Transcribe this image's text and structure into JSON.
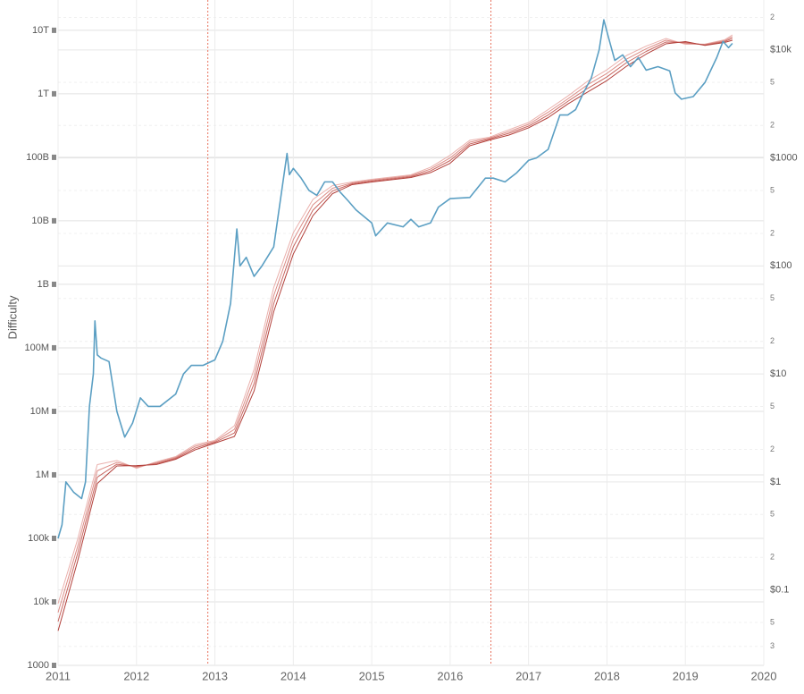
{
  "chart_data": {
    "type": "line",
    "ylabel": "Difficulty",
    "xlim": [
      2011,
      2020
    ],
    "xticks": [
      2011,
      2012,
      2013,
      2014,
      2015,
      2016,
      2017,
      2018,
      2019,
      2020
    ],
    "ylim": [
      1000,
      30000000000000
    ],
    "ylog": true,
    "yticks": [
      1000,
      {
        "value": 10000,
        "label": "10k"
      },
      {
        "value": 100000,
        "label": "100k"
      },
      {
        "value": 1000000,
        "label": "1M"
      },
      {
        "value": 10000000,
        "label": "10M"
      },
      {
        "value": 100000000,
        "label": "100M"
      },
      {
        "value": 1000000000,
        "label": "1B"
      },
      {
        "value": 10000000000,
        "label": "10B"
      },
      {
        "value": 100000000000,
        "label": "100B"
      },
      {
        "value": 1000000000000,
        "label": "1T"
      },
      {
        "value": 10000000000000,
        "label": "10T"
      }
    ],
    "y2lim": [
      0.02,
      29000
    ],
    "y2log": true,
    "y2ticks": [
      {
        "value": 0.03,
        "label": "3"
      },
      {
        "value": 0.05,
        "label": "5"
      },
      {
        "value": 0.1,
        "label": "$0.1"
      },
      {
        "value": 0.2,
        "label": "2"
      },
      {
        "value": 0.5,
        "label": "5"
      },
      {
        "value": 1,
        "label": "$1"
      },
      2,
      5,
      {
        "value": 10,
        "label": "$10"
      },
      {
        "value": 20,
        "label": "2"
      },
      {
        "value": 50,
        "label": "5"
      },
      {
        "value": 100,
        "label": "$100"
      },
      {
        "value": 200,
        "label": "2"
      },
      {
        "value": 500,
        "label": "5"
      },
      {
        "value": 1000,
        "label": "$1000"
      },
      {
        "value": 2000,
        "label": "2"
      },
      {
        "value": 5000,
        "label": "5"
      },
      {
        "value": 10000,
        "label": "$10k"
      },
      {
        "value": 20000,
        "label": "2"
      }
    ],
    "grid": true,
    "vlines": [
      2012.91,
      2016.52
    ],
    "vline_color": "#e8735e",
    "x": [
      2011.0,
      2011.25,
      2011.5,
      2011.75,
      2012.0,
      2012.25,
      2012.5,
      2012.75,
      2013.0,
      2013.25,
      2013.5,
      2013.75,
      2014.0,
      2014.25,
      2014.5,
      2014.75,
      2015.0,
      2015.5,
      2015.75,
      2016.0,
      2016.25,
      2016.5,
      2016.75,
      2017.0,
      2017.25,
      2017.5,
      2017.75,
      2018.0,
      2018.25,
      2018.5,
      2018.75,
      2019.0,
      2019.25,
      2019.5,
      2019.6
    ],
    "series": [
      {
        "color": "#eab0ac",
        "values": [
          9400,
          97000,
          1450000,
          1680000,
          1270000,
          1600000,
          1940000,
          3000000,
          3480000,
          5940000,
          45800000,
          890000000,
          6500000000,
          21700000000,
          35900000000,
          40800000000,
          45000000000,
          53000000000,
          69700000000,
          108000000000,
          185000000000,
          207000000000,
          272000000000,
          353000000000,
          565000000000,
          920000000000,
          1570000000000,
          2390000000000,
          4020000000000,
          5640000000000,
          7430000000000,
          6030000000000,
          6080000000000,
          7080000000000,
          8470000000000
        ]
      },
      {
        "color": "#dc8c86",
        "values": [
          6800,
          75000,
          1160000,
          1570000,
          1320000,
          1550000,
          1880000,
          2820000,
          3370000,
          5220000,
          35300000,
          665000000,
          5050000000,
          17900000000,
          32600000000,
          39500000000,
          43600000000,
          51300000000,
          65300000000,
          98000000000,
          173000000000,
          200000000000,
          255000000000,
          331000000000,
          513000000000,
          830000000000,
          1380000000000,
          2100000000000,
          3520000000000,
          5120000000000,
          6970000000000,
          6220000000000,
          5980000000000,
          6850000000000,
          7940000000000
        ]
      },
      {
        "color": "#c86660",
        "values": [
          4900,
          58000,
          920000,
          1470000,
          1360000,
          1500000,
          1820000,
          2640000,
          3260000,
          4580000,
          27300000,
          497000000,
          3890000000,
          14700000000,
          29500000000,
          38300000000,
          42200000000,
          49700000000,
          61200000000,
          89000000000,
          162000000000,
          194000000000,
          239000000000,
          310000000000,
          465000000000,
          760000000000,
          1210000000000,
          1850000000000,
          3100000000000,
          4650000000000,
          6530000000000,
          6430000000000,
          5890000000000,
          6640000000000,
          7450000000000
        ]
      },
      {
        "color": "#b23f3a",
        "values": [
          3500,
          44000,
          730000,
          1380000,
          1400000,
          1450000,
          1760000,
          2480000,
          3160000,
          4030000,
          21000000,
          371000000,
          3000000000,
          12100000000,
          26800000000,
          37100000000,
          40800000000,
          48100000000,
          57400000000,
          80700000000,
          152000000000,
          187000000000,
          224000000000,
          291000000000,
          422000000000,
          690000000000,
          1060000000000,
          1620000000000,
          2720000000000,
          4220000000000,
          6120000000000,
          6640000000000,
          5790000000000,
          6430000000000,
          6980000000000
        ]
      },
      {
        "color": "#5b9fc3",
        "axis": "y2",
        "x": [
          2011.0,
          2011.05,
          2011.1,
          2011.2,
          2011.3,
          2011.35,
          2011.4,
          2011.45,
          2011.47,
          2011.5,
          2011.55,
          2011.65,
          2011.75,
          2011.85,
          2011.95,
          2012.05,
          2012.15,
          2012.3,
          2012.5,
          2012.6,
          2012.7,
          2012.85,
          2013.0,
          2013.1,
          2013.2,
          2013.28,
          2013.32,
          2013.4,
          2013.5,
          2013.6,
          2013.75,
          2013.92,
          2013.95,
          2014.0,
          2014.1,
          2014.2,
          2014.3,
          2014.4,
          2014.5,
          2014.6,
          2014.7,
          2014.8,
          2015.0,
          2015.05,
          2015.2,
          2015.4,
          2015.5,
          2015.6,
          2015.75,
          2015.85,
          2016.0,
          2016.25,
          2016.45,
          2016.55,
          2016.7,
          2016.85,
          2017.0,
          2017.1,
          2017.25,
          2017.4,
          2017.5,
          2017.6,
          2017.7,
          2017.8,
          2017.9,
          2017.96,
          2018.02,
          2018.1,
          2018.2,
          2018.3,
          2018.4,
          2018.5,
          2018.65,
          2018.8,
          2018.87,
          2018.95,
          2019.1,
          2019.25,
          2019.4,
          2019.48,
          2019.55,
          2019.6
        ],
        "values": [
          0.3,
          0.4,
          1.0,
          0.8,
          0.7,
          1.0,
          5,
          10,
          31,
          15,
          14,
          13,
          4.5,
          2.6,
          3.5,
          6,
          5,
          5,
          6.5,
          10,
          12,
          12,
          13.5,
          20,
          45,
          220,
          100,
          120,
          80,
          100,
          150,
          1100,
          700,
          800,
          650,
          500,
          450,
          600,
          600,
          480,
          400,
          330,
          250,
          190,
          250,
          230,
          270,
          230,
          250,
          350,
          420,
          430,
          650,
          650,
          600,
          730,
          950,
          1000,
          1200,
          2500,
          2500,
          2800,
          4000,
          5500,
          10000,
          19000,
          13000,
          8000,
          9000,
          7000,
          8500,
          6500,
          7000,
          6400,
          4000,
          3500,
          3700,
          5000,
          8500,
          12000,
          10500,
          11500
        ]
      }
    ]
  }
}
